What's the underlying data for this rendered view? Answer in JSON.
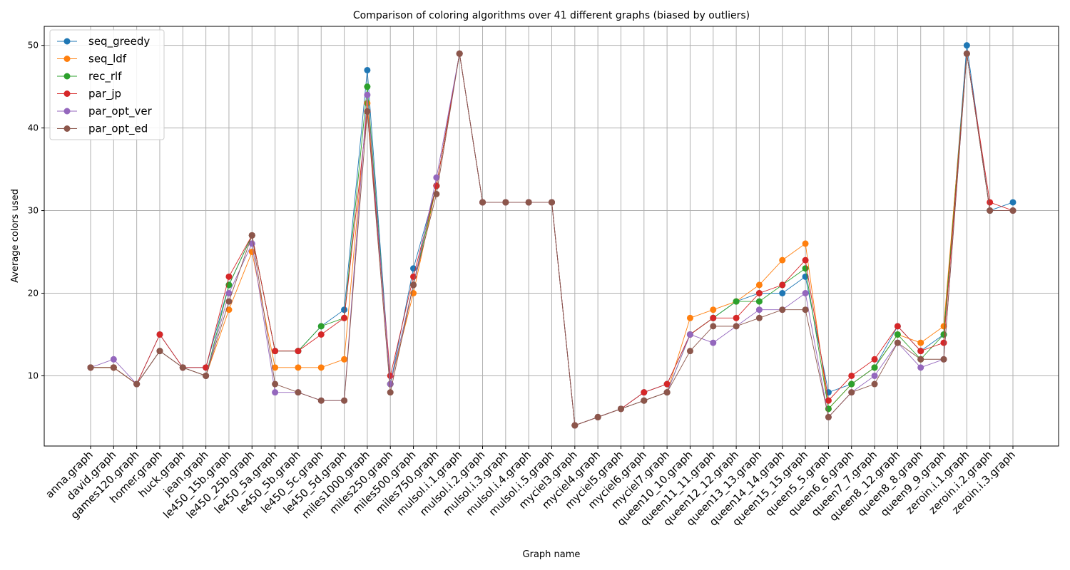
{
  "chart_data": {
    "type": "line",
    "title": "Comparison of coloring algorithms over 41 different graphs (biased by outliers)",
    "xlabel": "Graph name",
    "ylabel": "Average colors used",
    "ylim": [
      1.5,
      52.3
    ],
    "yticks": [
      10,
      20,
      30,
      40,
      50
    ],
    "grid": true,
    "legend_position": "top-left",
    "categories": [
      "anna.graph",
      "david.graph",
      "games120.graph",
      "homer.graph",
      "huck.graph",
      "jean.graph",
      "le450_15b.graph",
      "le450_25b.graph",
      "le450_5a.graph",
      "le450_5b.graph",
      "le450_5c.graph",
      "le450_5d.graph",
      "miles1000.graph",
      "miles250.graph",
      "miles500.graph",
      "miles750.graph",
      "mulsol.i.1.graph",
      "mulsol.i.2.graph",
      "mulsol.i.3.graph",
      "mulsol.i.4.graph",
      "mulsol.i.5.graph",
      "myciel3.graph",
      "myciel4.graph",
      "myciel5.graph",
      "myciel6.graph",
      "myciel7.graph",
      "queen10_10.graph",
      "queen11_11.graph",
      "queen12_12.graph",
      "queen13_13.graph",
      "queen14_14.graph",
      "queen15_15.graph",
      "queen5_5.graph",
      "queen6_6.graph",
      "queen7_7.graph",
      "queen8_12.graph",
      "queen8_8.graph",
      "queen9_9.graph",
      "zeroin.i.1.graph",
      "zeroin.i.2.graph",
      "zeroin.i.3.graph"
    ],
    "series": [
      {
        "name": "seq_greedy",
        "color": "#1f77b4",
        "values": [
          11,
          11,
          9,
          15,
          11,
          11,
          21,
          27,
          13,
          13,
          16,
          18,
          47,
          9,
          23,
          33,
          49,
          31,
          31,
          31,
          31,
          4,
          5,
          6,
          8,
          9,
          15,
          17,
          19,
          20,
          20,
          22,
          8,
          9,
          11,
          16,
          13,
          15,
          50,
          30,
          31
        ]
      },
      {
        "name": "seq_ldf",
        "color": "#ff7f0e",
        "values": [
          11,
          11,
          9,
          13,
          11,
          10,
          18,
          25,
          11,
          11,
          11,
          12,
          43,
          9,
          20,
          33,
          49,
          31,
          31,
          31,
          31,
          4,
          5,
          6,
          7,
          8,
          17,
          18,
          19,
          21,
          24,
          26,
          6,
          9,
          11,
          15,
          14,
          16,
          49,
          30,
          30
        ]
      },
      {
        "name": "rec_rlf",
        "color": "#2ca02c",
        "values": [
          11,
          11,
          9,
          13,
          11,
          10,
          21,
          27,
          13,
          13,
          16,
          17,
          45,
          9,
          21,
          33,
          49,
          31,
          31,
          31,
          31,
          4,
          5,
          6,
          7,
          8,
          15,
          17,
          19,
          19,
          21,
          23,
          6,
          9,
          11,
          15,
          12,
          15,
          49,
          30,
          30
        ]
      },
      {
        "name": "par_jp",
        "color": "#d62728",
        "values": [
          11,
          11,
          9,
          15,
          11,
          11,
          22,
          27,
          13,
          13,
          15,
          17,
          42,
          10,
          22,
          33,
          49,
          31,
          31,
          31,
          31,
          4,
          5,
          6,
          8,
          9,
          15,
          17,
          17,
          20,
          21,
          24,
          7,
          10,
          12,
          16,
          13,
          14,
          49,
          31,
          30
        ]
      },
      {
        "name": "par_opt_ver",
        "color": "#9467bd",
        "values": [
          11,
          12,
          9,
          13,
          11,
          10,
          20,
          26,
          8,
          8,
          7,
          7,
          44,
          9,
          21,
          34,
          49,
          31,
          31,
          31,
          31,
          4,
          5,
          6,
          7,
          8,
          15,
          14,
          16,
          18,
          18,
          20,
          5,
          8,
          10,
          14,
          11,
          12,
          49,
          30,
          30
        ]
      },
      {
        "name": "par_opt_ed",
        "color": "#8c564b",
        "values": [
          11,
          11,
          9,
          13,
          11,
          10,
          19,
          27,
          9,
          8,
          7,
          7,
          42,
          8,
          21,
          32,
          49,
          31,
          31,
          31,
          31,
          4,
          5,
          6,
          7,
          8,
          13,
          16,
          16,
          17,
          18,
          18,
          5,
          8,
          9,
          14,
          12,
          12,
          49,
          30,
          30
        ]
      }
    ]
  }
}
